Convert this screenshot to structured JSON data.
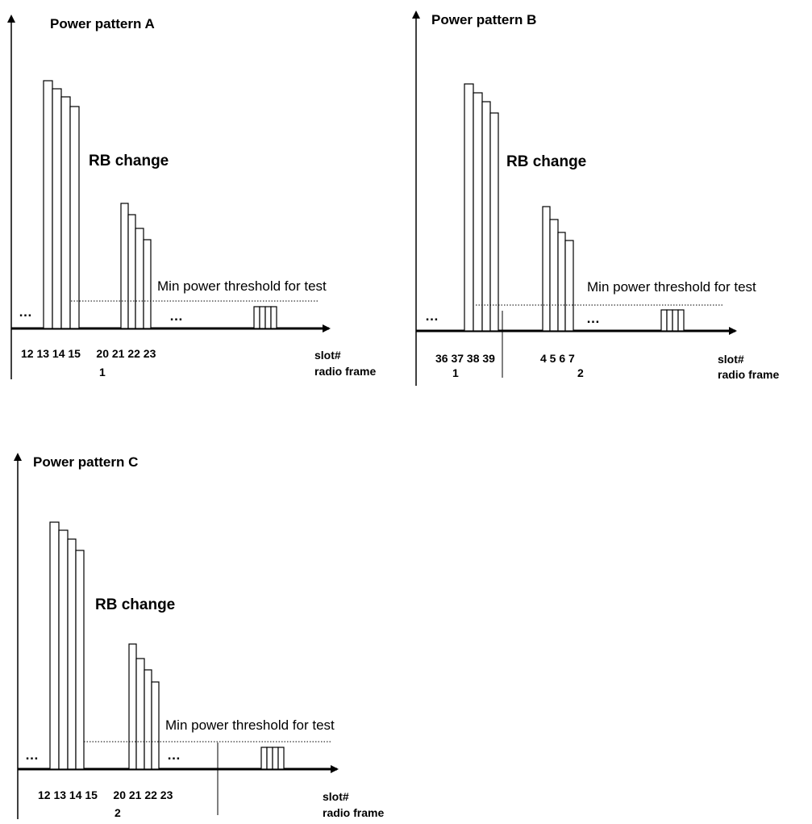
{
  "panels": [
    {
      "id": "a",
      "title": "Power pattern A",
      "rb_label": "RB change",
      "threshold_label": "Min power threshold for test",
      "ellipsis_left": "…",
      "ellipsis_mid": "…",
      "slot_labels": "12 13 14 15     20 21 22 23",
      "frame_number": "1",
      "axis_label_slot": "slot#",
      "axis_label_frame": "radio frame"
    },
    {
      "id": "b",
      "title": "Power pattern B",
      "rb_label": "RB change",
      "threshold_label": "Min power threshold for test",
      "ellipsis_left": "…",
      "ellipsis_mid": "…",
      "slot_labels_left": "36 37 38 39",
      "slot_labels_right": "4 5 6 7",
      "frame_number_left": "1",
      "frame_number_right": "2",
      "axis_label_slot": "slot#",
      "axis_label_frame": "radio frame"
    },
    {
      "id": "c",
      "title": "Power pattern C",
      "rb_label": "RB change",
      "threshold_label": "Min power threshold for test",
      "ellipsis_left": "…",
      "ellipsis_mid": "…",
      "slot_labels": "12 13 14 15     20 21 22 23",
      "frame_number": "2",
      "axis_label_slot": "slot#",
      "axis_label_frame": "radio frame"
    }
  ]
}
